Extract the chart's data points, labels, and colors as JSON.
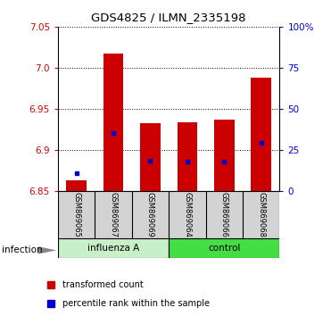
{
  "title": "GDS4825 / ILMN_2335198",
  "samples": [
    "GSM869065",
    "GSM869067",
    "GSM869069",
    "GSM869064",
    "GSM869066",
    "GSM869068"
  ],
  "groups": [
    "influenza A",
    "influenza A",
    "influenza A",
    "control",
    "control",
    "control"
  ],
  "group_labels": [
    "influenza A",
    "control"
  ],
  "bar_bottom": [
    6.85,
    6.85,
    6.85,
    6.85,
    6.85,
    6.85
  ],
  "bar_top": [
    6.863,
    7.018,
    6.933,
    6.934,
    6.937,
    6.988
  ],
  "percentile_rank": [
    6.872,
    6.921,
    6.887,
    6.886,
    6.886,
    6.909
  ],
  "ylim": [
    6.85,
    7.05
  ],
  "yticks_left": [
    6.85,
    6.9,
    6.95,
    7.0,
    7.05
  ],
  "yticks_right": [
    0,
    25,
    50,
    75,
    100
  ],
  "bar_color": "#cc0000",
  "percentile_color": "#0000cc",
  "influenza_color": "#c8f0c8",
  "control_color": "#44dd44",
  "infection_label": "infection",
  "legend_labels": [
    "transformed count",
    "percentile rank within the sample"
  ],
  "axis_label_color_left": "#cc0000",
  "axis_label_color_right": "#0000cc",
  "bar_width": 0.55,
  "figsize": [
    3.71,
    3.54
  ],
  "dpi": 100
}
